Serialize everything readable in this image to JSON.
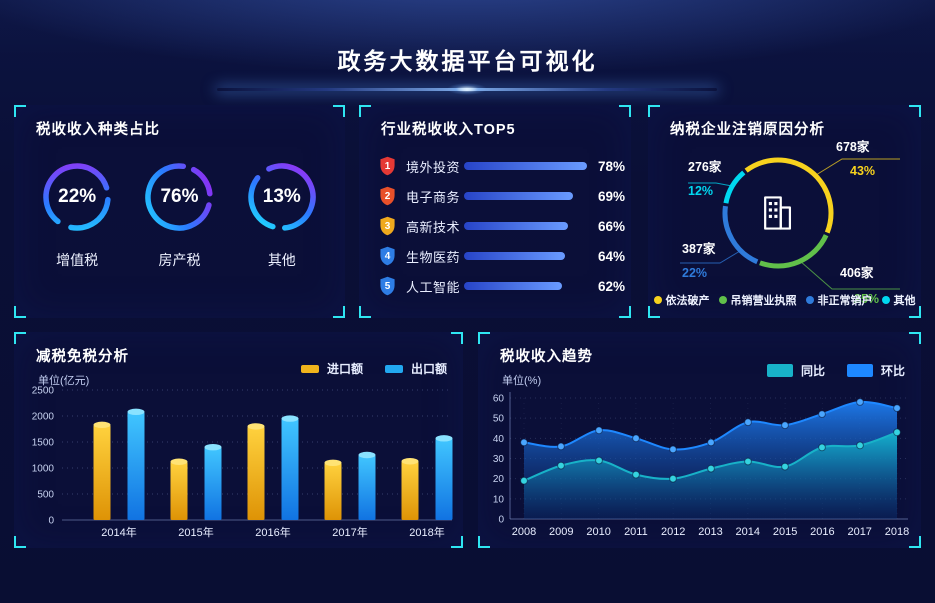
{
  "page": {
    "title": "政务大数据平台可视化"
  },
  "panels": {
    "tax_type": {
      "title": "税收收入种类占比"
    },
    "industry": {
      "title": "行业税收收入TOP5"
    },
    "cancel": {
      "title": "纳税企业注销原因分析"
    },
    "reduction": {
      "title": "减税免税分析"
    },
    "trend": {
      "title": "税收收入趋势"
    }
  },
  "chart_data": [
    {
      "type": "pie",
      "display": "gauge-rings",
      "title": "税收收入种类占比",
      "unit": "%",
      "slices": [
        {
          "label": "增值税",
          "value": 22,
          "percent_label": "22%"
        },
        {
          "label": "房产税",
          "value": 76,
          "percent_label": "76%"
        },
        {
          "label": "其他",
          "value": 13,
          "percent_label": "13%"
        }
      ]
    },
    {
      "type": "bar",
      "orientation": "horizontal",
      "title": "行业税收收入TOP5",
      "categories": [
        "境外投资",
        "电子商务",
        "高新技术",
        "生物医药",
        "人工智能"
      ],
      "values": [
        78,
        69,
        66,
        64,
        62
      ],
      "value_labels": [
        "78%",
        "69%",
        "66%",
        "64%",
        "62%"
      ],
      "ranks": [
        "1",
        "2",
        "3",
        "4",
        "5"
      ],
      "badge_colors": [
        "#e53935",
        "#e8502a",
        "#efa91e",
        "#2e7de5",
        "#2e7de5"
      ],
      "bar_color_start": "#2744c8",
      "bar_color_end": "#6a9bff",
      "xlim": [
        0,
        100
      ]
    },
    {
      "type": "pie",
      "title": "纳税企业注销原因分析",
      "center_icon": "building",
      "legend_position": "bottom",
      "slices": [
        {
          "label": "依法破产",
          "count": "678家",
          "percent": 43,
          "percent_label": "43%",
          "color": "#f7d21e"
        },
        {
          "label": "吊销营业执照",
          "count": "406家",
          "percent": 25,
          "percent_label": "25%",
          "color": "#61c04a"
        },
        {
          "label": "非正常销户",
          "count": "387家",
          "percent": 22,
          "percent_label": "22%",
          "color": "#2f7bdb"
        },
        {
          "label": "其他",
          "count": "276家",
          "percent": 12,
          "percent_label": "12%",
          "color": "#00d8f0"
        }
      ]
    },
    {
      "type": "bar",
      "title": "减税免税分析",
      "ylabel": "单位(亿元)",
      "categories": [
        "2014年",
        "2015年",
        "2016年",
        "2017年",
        "2018年"
      ],
      "series": [
        {
          "name": "进口额",
          "color": "#f0b41c",
          "gradient": [
            "#ffd23e",
            "#de9306"
          ],
          "cap_color": "#ffe374",
          "values": [
            1830,
            1120,
            1800,
            1100,
            1130
          ]
        },
        {
          "name": "出口额",
          "color": "#22a8f0",
          "gradient": [
            "#41c6ff",
            "#1173e2"
          ],
          "cap_color": "#8ae2ff",
          "values": [
            2080,
            1400,
            1950,
            1250,
            1570
          ]
        }
      ],
      "ylim": [
        0,
        2500
      ],
      "yticks": [
        0,
        500,
        1000,
        1500,
        2000,
        2500
      ],
      "grid": "dotted",
      "legend_position": "top-right"
    },
    {
      "type": "area",
      "title": "税收收入趋势",
      "ylabel": "单位(%)",
      "x": [
        "2008",
        "2009",
        "2010",
        "2011",
        "2012",
        "2013",
        "2014",
        "2015",
        "2016",
        "2017",
        "2018"
      ],
      "series": [
        {
          "name": "同比",
          "color": "#18b2c8",
          "marker_color": "#35d3e0",
          "area_top": "#14b4cc",
          "area_bottom": "#0b3f86",
          "values": [
            19,
            26.5,
            29,
            22,
            20,
            25,
            28.5,
            26,
            35.5,
            36.5,
            43
          ]
        },
        {
          "name": "环比",
          "color": "#1e88ff",
          "marker_color": "#4aa6ff",
          "area_top": "#1e7df0",
          "area_bottom": "#0b2f7a",
          "values": [
            38,
            36,
            44,
            40,
            34.5,
            38,
            48,
            46.5,
            52,
            58,
            55
          ]
        }
      ],
      "ylim": [
        0,
        60
      ],
      "yticks": [
        0,
        10,
        20,
        30,
        40,
        50,
        60
      ],
      "grid": "dotted",
      "legend_position": "top-right"
    }
  ]
}
